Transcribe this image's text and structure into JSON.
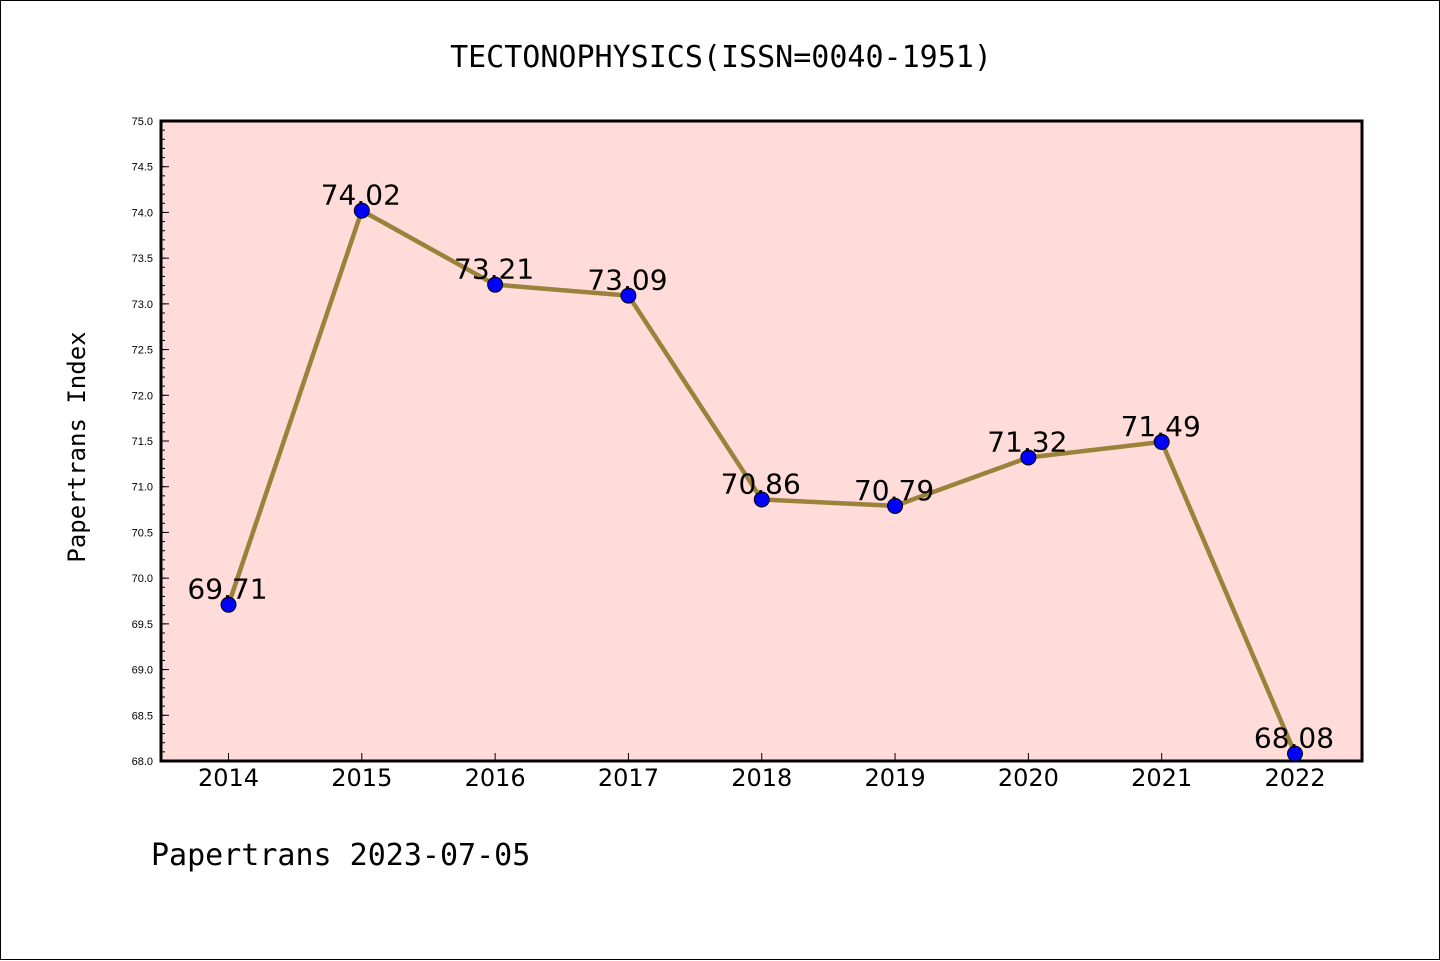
{
  "chart_data": {
    "type": "line",
    "title": "TECTONOPHYSICS(ISSN=0040-1951)",
    "xlabel": "",
    "ylabel": "Papertrans Index",
    "x": [
      "2014",
      "2015",
      "2016",
      "2017",
      "2018",
      "2019",
      "2020",
      "2021",
      "2022"
    ],
    "series": [
      {
        "values": [
          69.71,
          74.02,
          73.21,
          73.09,
          70.86,
          70.79,
          71.32,
          71.49,
          68.08
        ],
        "data_labels": [
          "69.71",
          "74.02",
          "73.21",
          "73.09",
          "70.86",
          "70.79",
          "71.32",
          "71.49",
          "68.08"
        ],
        "line_color": "#9b8139",
        "marker_color": "#0000ff"
      }
    ],
    "ylim": [
      68.0,
      75.0
    ],
    "yticks": [
      "68.0",
      "68.5",
      "69.0",
      "69.5",
      "70.0",
      "70.5",
      "71.0",
      "71.5",
      "72.0",
      "72.5",
      "73.0",
      "73.5",
      "74.0",
      "74.5",
      "75.0"
    ],
    "grid": false,
    "plot_background": "#ffdcda"
  },
  "footer": "Papertrans 2023-07-05"
}
